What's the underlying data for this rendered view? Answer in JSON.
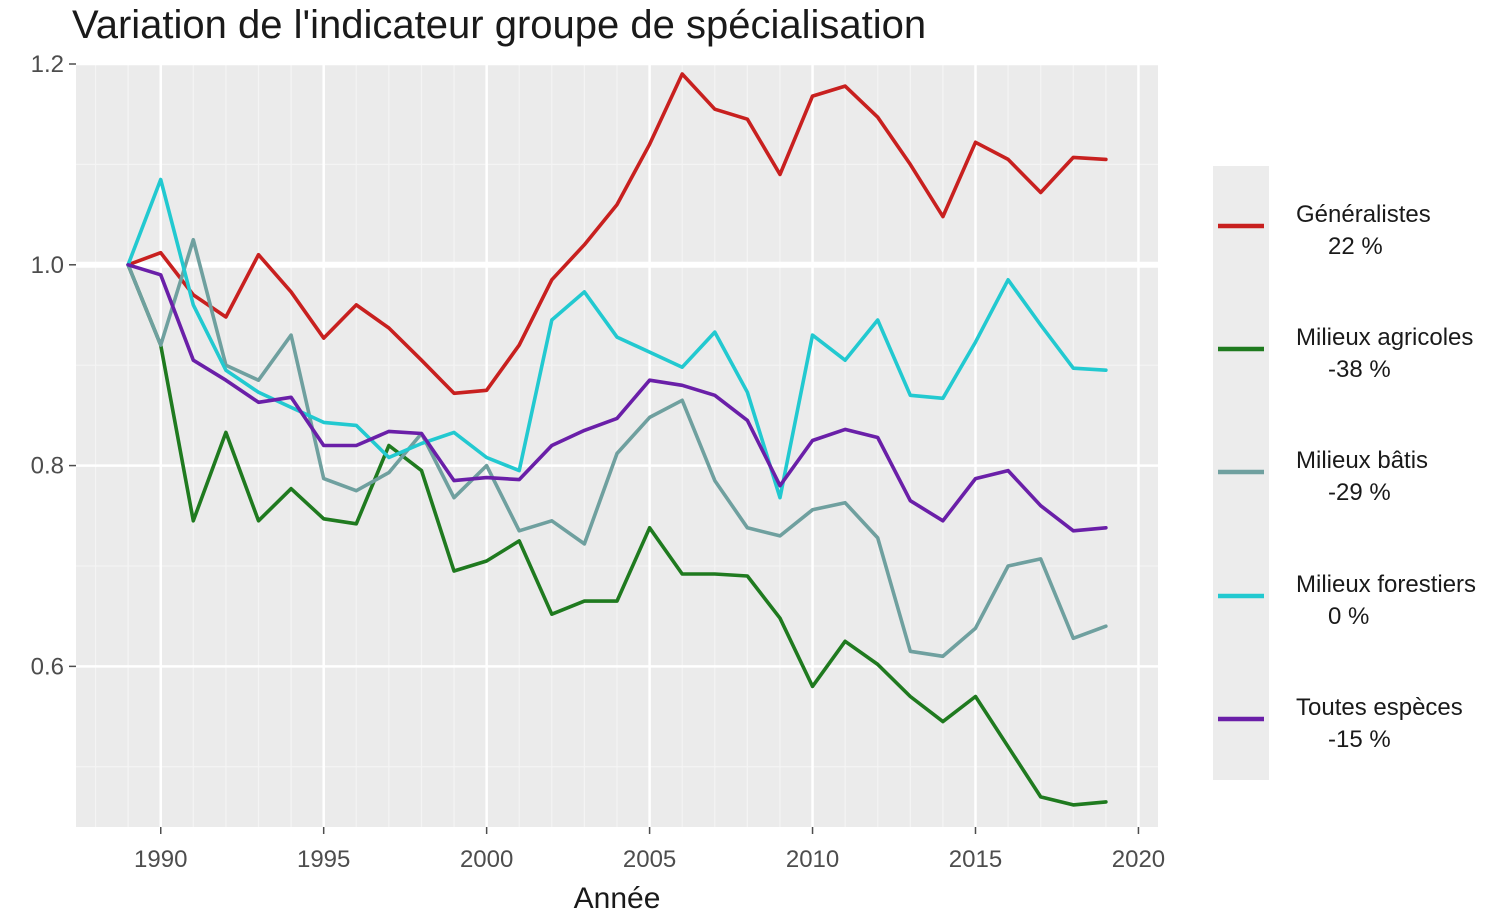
{
  "chart_data": {
    "type": "line",
    "title": "Variation de l'indicateur groupe de spécialisation",
    "xlabel": "Année",
    "ylabel": "",
    "xlim": [
      1987.4,
      2020.6
    ],
    "ylim": [
      0.44,
      1.2
    ],
    "x_ticks": [
      1990,
      1995,
      2000,
      2005,
      2010,
      2015,
      2020
    ],
    "y_ticks": [
      0.6,
      0.8,
      1.0,
      1.2
    ],
    "y_tick_labels": [
      "0.6",
      "0.8",
      "1.0",
      "1.2"
    ],
    "grid": true,
    "reference_line": 1.0,
    "legend_position": "right",
    "x": [
      1989,
      1990,
      1991,
      1992,
      1993,
      1994,
      1995,
      1996,
      1997,
      1998,
      1999,
      2000,
      2001,
      2002,
      2003,
      2004,
      2005,
      2006,
      2007,
      2008,
      2009,
      2010,
      2011,
      2012,
      2013,
      2014,
      2015,
      2016,
      2017,
      2018,
      2019
    ],
    "series": [
      {
        "name": "Généralistes",
        "pct": "22 %",
        "color": "#c8201f",
        "values": [
          1.0,
          1.012,
          0.97,
          0.948,
          1.01,
          0.973,
          0.927,
          0.96,
          0.937,
          0.905,
          0.872,
          0.875,
          0.92,
          0.985,
          1.02,
          1.06,
          1.12,
          1.19,
          1.155,
          1.145,
          1.09,
          1.168,
          1.178,
          1.147,
          1.1,
          1.048,
          1.122,
          1.105,
          1.072,
          1.107,
          1.105
        ]
      },
      {
        "name": "Milieux agricoles",
        "pct": "-38 %",
        "color": "#1f7a1f",
        "values": [
          1.0,
          0.92,
          0.745,
          0.833,
          0.745,
          0.777,
          0.747,
          0.742,
          0.82,
          0.795,
          0.695,
          0.705,
          0.725,
          0.652,
          0.665,
          0.665,
          0.738,
          0.692,
          0.692,
          0.69,
          0.648,
          0.58,
          0.625,
          0.602,
          0.57,
          0.545,
          0.57,
          0.52,
          0.47,
          0.462,
          0.465
        ]
      },
      {
        "name": "Milieux bâtis",
        "pct": "-29 %",
        "color": "#6fa09f",
        "values": [
          1.0,
          0.92,
          1.025,
          0.9,
          0.885,
          0.93,
          0.787,
          0.775,
          0.793,
          0.832,
          0.768,
          0.8,
          0.735,
          0.745,
          0.722,
          0.812,
          0.848,
          0.865,
          0.785,
          0.738,
          0.73,
          0.756,
          0.763,
          0.728,
          0.615,
          0.61,
          0.638,
          0.7,
          0.707,
          0.628,
          0.64
        ]
      },
      {
        "name": "Milieux forestiers",
        "pct": "0 %",
        "color": "#22c9d0",
        "values": [
          1.0,
          1.085,
          0.96,
          0.895,
          0.873,
          0.858,
          0.843,
          0.84,
          0.808,
          0.822,
          0.833,
          0.808,
          0.795,
          0.945,
          0.973,
          0.928,
          0.913,
          0.898,
          0.933,
          0.873,
          0.768,
          0.93,
          0.905,
          0.945,
          0.87,
          0.867,
          0.923,
          0.985,
          0.94,
          0.897,
          0.895
        ]
      },
      {
        "name": "Toutes espèces",
        "pct": "-15 %",
        "color": "#6a1fa8",
        "values": [
          1.0,
          0.99,
          0.905,
          0.885,
          0.863,
          0.868,
          0.82,
          0.82,
          0.834,
          0.832,
          0.785,
          0.788,
          0.786,
          0.82,
          0.835,
          0.847,
          0.885,
          0.88,
          0.87,
          0.845,
          0.78,
          0.825,
          0.836,
          0.828,
          0.765,
          0.745,
          0.787,
          0.795,
          0.76,
          0.735,
          0.738
        ]
      }
    ]
  }
}
